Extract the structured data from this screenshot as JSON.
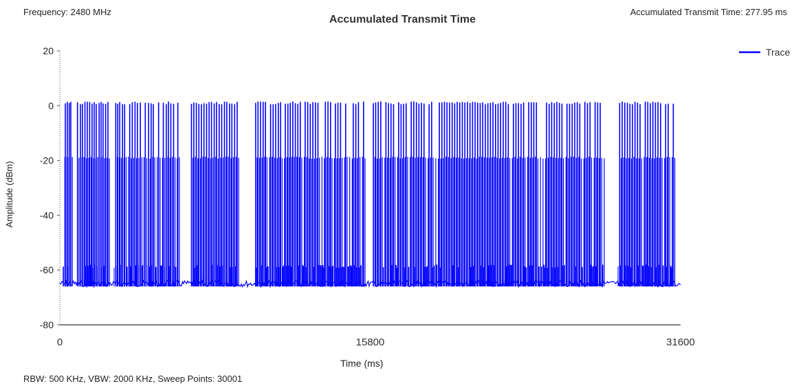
{
  "header": {
    "frequency": "Frequency: 2480 MHz",
    "title": "Accumulated Transmit Time",
    "accumulated": "Accumulated Transmit Time: 277.95 ms"
  },
  "footer": {
    "settings": "RBW: 500 KHz,  VBW: 2000 KHz,  Sweep Points: 30001"
  },
  "colors": {
    "trace": "#0000ff",
    "axis": "#333333",
    "text": "#222222"
  },
  "chart_data": {
    "type": "line",
    "title": "Accumulated Transmit Time",
    "xlabel": "Time (ms)",
    "ylabel": "Amplitude (dBm)",
    "xlim": [
      0,
      31600
    ],
    "ylim": [
      -80,
      20
    ],
    "xticks": [
      0,
      15800,
      31600
    ],
    "yticks": [
      20,
      0,
      -20,
      -40,
      -60,
      -80
    ],
    "xtick_labels": [
      "0",
      "15800",
      "31600"
    ],
    "ytick_labels": [
      "20",
      "0",
      "-20",
      "-40",
      "-60",
      "-80"
    ],
    "legend": {
      "position": "top-right",
      "entries": [
        "Trace"
      ]
    },
    "grid": false,
    "series": [
      {
        "name": "Trace",
        "noise_floor_dbm": -65,
        "burst_peak_dbm": 1,
        "burst_mid_dbm": -19,
        "burst_times_ms": [
          180,
          280,
          380,
          480,
          560,
          900,
          1050,
          1150,
          1280,
          1400,
          1520,
          1640,
          1750,
          1850,
          2000,
          2100,
          2200,
          2330,
          2450,
          2850,
          2950,
          3050,
          3190,
          3300,
          3420,
          3560,
          3690,
          3830,
          3950,
          4100,
          4210,
          4350,
          4520,
          4650,
          4760,
          4880,
          5030,
          5150,
          5270,
          5420,
          5530,
          5650,
          5790,
          5900,
          6010,
          6700,
          6820,
          6950,
          7080,
          7210,
          7340,
          7470,
          7600,
          7720,
          7860,
          7980,
          8110,
          8240,
          8380,
          8500,
          8640,
          8760,
          8900,
          9030,
          9970,
          10090,
          10220,
          10350,
          10470,
          10600,
          10730,
          10860,
          10990,
          11120,
          11240,
          11360,
          11480,
          11610,
          11730,
          11860,
          11990,
          12120,
          12240,
          12370,
          12490,
          12620,
          12750,
          12880,
          13010,
          13140,
          13270,
          13390,
          13520,
          13650,
          13780,
          13900,
          14030,
          14160,
          14290,
          14420,
          14550,
          14680,
          14810,
          14940,
          15070,
          15200,
          15330,
          15460,
          15960,
          16080,
          16210,
          16340,
          16470,
          16600,
          16730,
          16860,
          16990,
          17120,
          17250,
          17370,
          17500,
          17630,
          17760,
          17890,
          18020,
          18150,
          18280,
          18410,
          18540,
          18670,
          18800,
          18930,
          19060,
          19190,
          19320,
          19450,
          19580,
          19710,
          19840,
          19970,
          20100,
          20230,
          20360,
          20490,
          20620,
          20750,
          20880,
          21010,
          21140,
          21270,
          21400,
          21530,
          21660,
          21790,
          21920,
          22050,
          22180,
          22310,
          22440,
          22570,
          22700,
          22830,
          22960,
          23090,
          23220,
          23350,
          23480,
          23610,
          23740,
          23870,
          24000,
          24130,
          24260,
          24390,
          24520,
          24650,
          24780,
          24910,
          25040,
          25170,
          25300,
          25430,
          25560,
          25690,
          25820,
          25950,
          26080,
          26210,
          26340,
          26470,
          26600,
          26730,
          26860,
          26990,
          27120,
          27250,
          27380,
          27510,
          27640,
          28500,
          28630,
          28760,
          28890,
          29020,
          29150,
          29280,
          29410,
          29540,
          29670,
          29800,
          29930,
          30060,
          30190,
          30320,
          30450,
          30580,
          30710,
          30840,
          30970,
          31100,
          31230
        ]
      }
    ]
  }
}
